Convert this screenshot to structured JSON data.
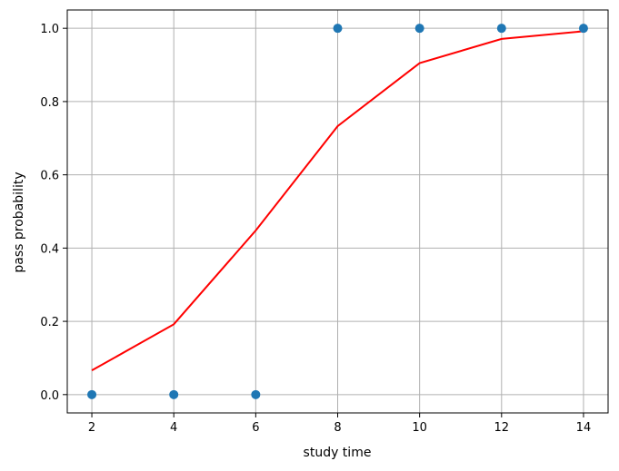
{
  "chart_data": {
    "type": "scatter",
    "xlabel": "study time",
    "ylabel": "pass probability",
    "xlim": [
      1.4,
      14.6
    ],
    "ylim": [
      -0.05,
      1.05
    ],
    "x_ticks": [
      2,
      4,
      6,
      8,
      10,
      12,
      14
    ],
    "y_ticks": [
      0.0,
      0.2,
      0.4,
      0.6,
      0.8,
      1.0
    ],
    "x_tick_labels": [
      "2",
      "4",
      "6",
      "8",
      "10",
      "12",
      "14"
    ],
    "y_tick_labels": [
      "0.0",
      "0.2",
      "0.4",
      "0.6",
      "0.8",
      "1.0"
    ],
    "grid": true,
    "series": [
      {
        "type": "scatter",
        "color": "#1f77b4",
        "points": [
          {
            "x": 2,
            "y": 0
          },
          {
            "x": 4,
            "y": 0
          },
          {
            "x": 6,
            "y": 0
          },
          {
            "x": 8,
            "y": 1
          },
          {
            "x": 10,
            "y": 1
          },
          {
            "x": 12,
            "y": 1
          },
          {
            "x": 14,
            "y": 1
          }
        ]
      },
      {
        "type": "line",
        "color": "#ff0000",
        "points": [
          {
            "x": 2,
            "y": 0.066
          },
          {
            "x": 4,
            "y": 0.192
          },
          {
            "x": 6,
            "y": 0.448
          },
          {
            "x": 8,
            "y": 0.733
          },
          {
            "x": 10,
            "y": 0.905
          },
          {
            "x": 12,
            "y": 0.971
          },
          {
            "x": 14,
            "y": 0.992
          }
        ]
      }
    ]
  }
}
